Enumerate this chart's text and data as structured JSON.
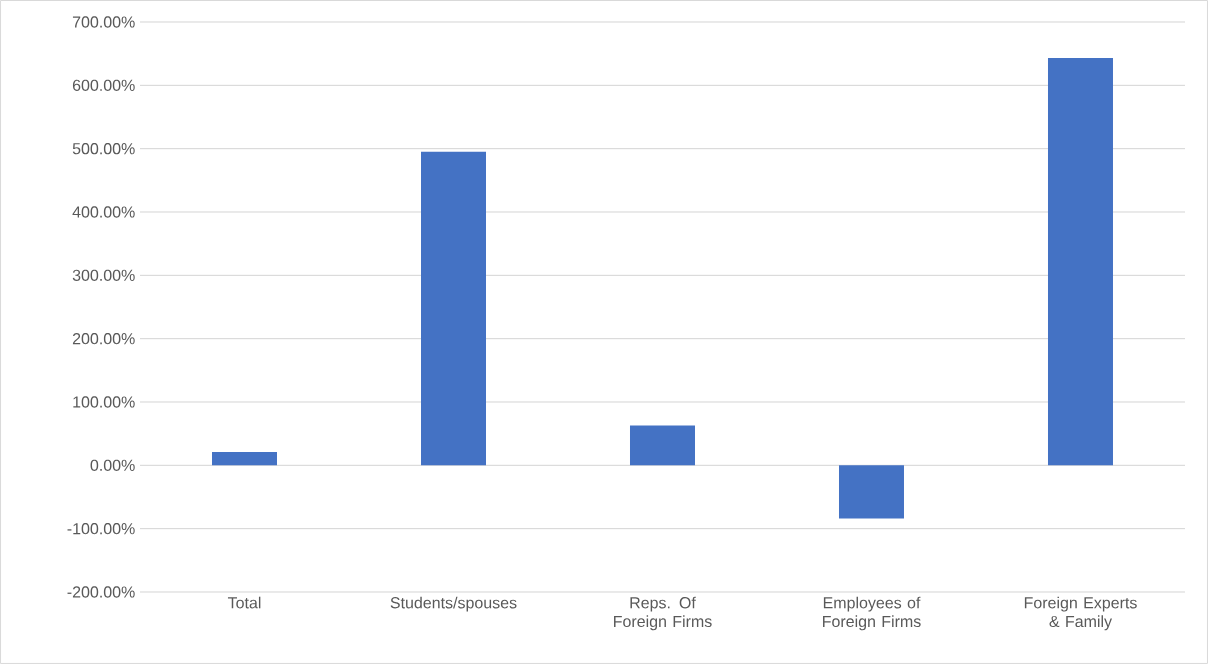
{
  "chart_data": {
    "type": "bar",
    "categories": [
      "Total",
      "Students/spouses",
      "Reps. Of Foreign Firms",
      "Employees of Foreign Firms",
      "Foreign Experts & Family"
    ],
    "values": [
      21,
      495,
      63,
      -84,
      643
    ],
    "color": "#4472c4",
    "ylim": [
      -200,
      700
    ],
    "yticks": [
      {
        "value": -200,
        "label": "-200.00%"
      },
      {
        "value": -100,
        "label": "-100.00%"
      },
      {
        "value": 0,
        "label": "0.00%"
      },
      {
        "value": 100,
        "label": "100.00%"
      },
      {
        "value": 200,
        "label": "200.00%"
      },
      {
        "value": 300,
        "label": "300.00%"
      },
      {
        "value": 400,
        "label": "400.00%"
      },
      {
        "value": 500,
        "label": "500.00%"
      },
      {
        "value": 600,
        "label": "600.00%"
      },
      {
        "value": 700,
        "label": "700.00%"
      }
    ],
    "grid": "y"
  }
}
